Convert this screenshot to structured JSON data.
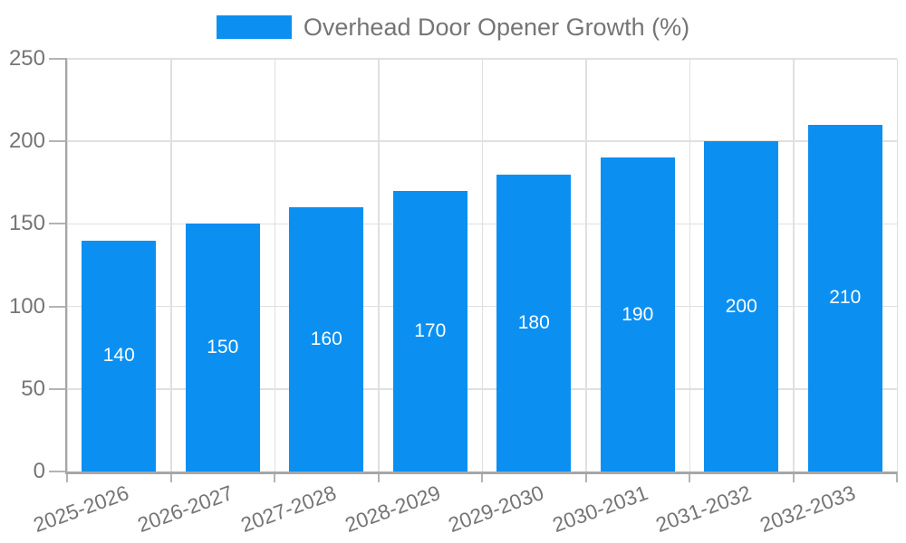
{
  "chart_data": {
    "type": "bar",
    "title": "",
    "legend": {
      "label": "Overhead Door Opener Growth (%)",
      "position": "top-center"
    },
    "categories": [
      "2025-2026",
      "2026-2027",
      "2027-2028",
      "2028-2029",
      "2029-2030",
      "2030-2031",
      "2031-2032",
      "2032-2033"
    ],
    "series": [
      {
        "name": "Overhead Door Opener Growth (%)",
        "values": [
          140,
          150,
          160,
          170,
          180,
          190,
          200,
          210
        ]
      }
    ],
    "value_labels_inside_bars": true,
    "xlabel": "",
    "ylabel": "",
    "ylim": [
      0,
      250
    ],
    "yticks": [
      0,
      50,
      100,
      150,
      200,
      250
    ],
    "x_tick_rotation_deg": -20,
    "grid": true,
    "colors": {
      "bar": "#0b90f2",
      "bar_label": "#ffffff",
      "axis": "#a6a6a6",
      "tick": "#b3b3b3",
      "gridline": "#e0e0e0",
      "tick_label": "#757575",
      "legend_text": "#757575",
      "background": "#ffffff"
    }
  }
}
